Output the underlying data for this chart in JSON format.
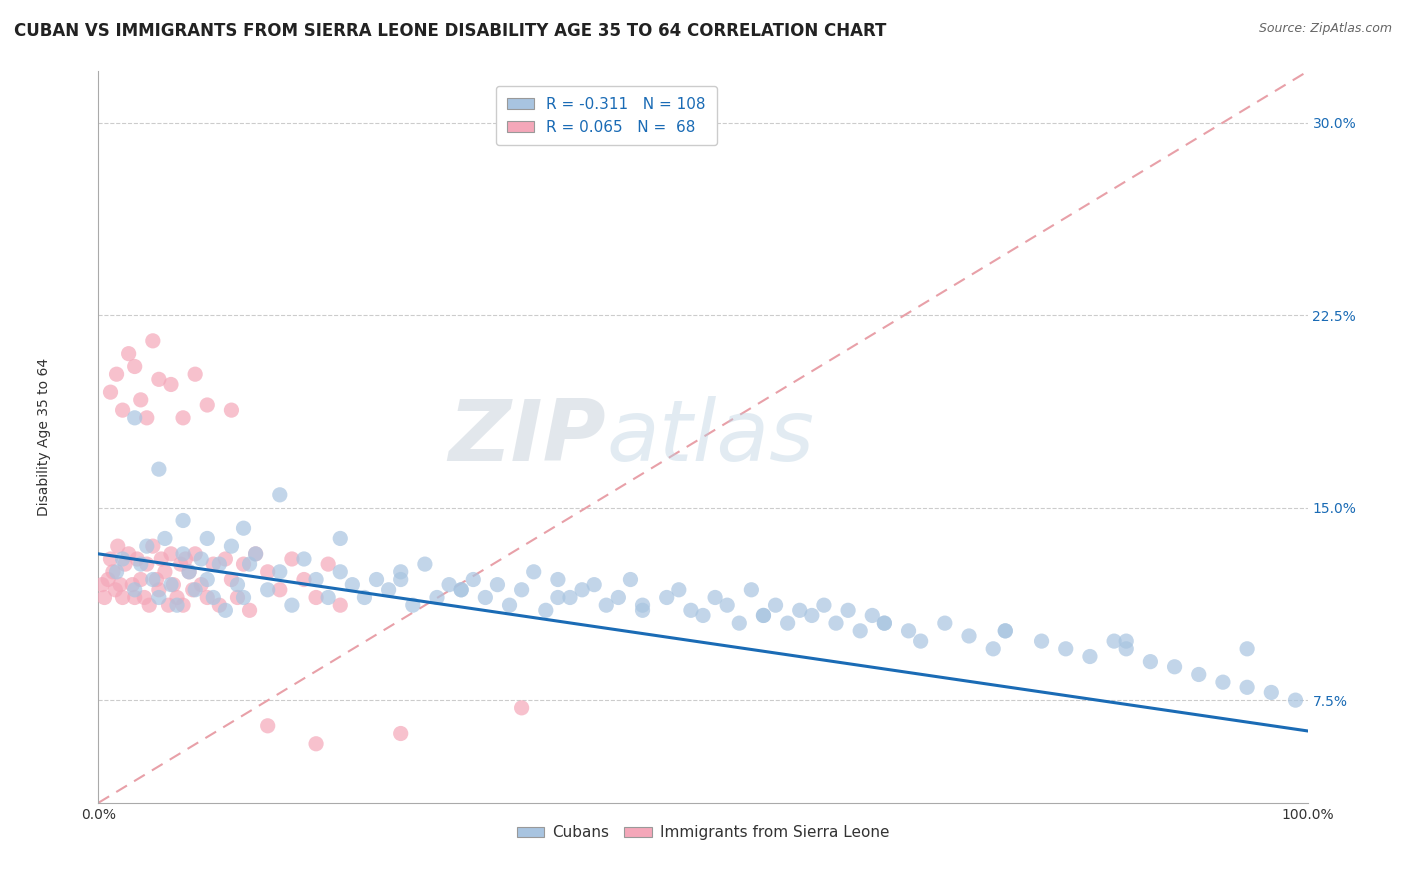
{
  "title": "CUBAN VS IMMIGRANTS FROM SIERRA LEONE DISABILITY AGE 35 TO 64 CORRELATION CHART",
  "source": "Source: ZipAtlas.com",
  "ylabel": "Disability Age 35 to 64",
  "x_min": 0.0,
  "x_max": 100.0,
  "y_min": 3.5,
  "y_max": 32.0,
  "x_tick_labels": [
    "0.0%",
    "100.0%"
  ],
  "y_ticks": [
    7.5,
    15.0,
    22.5,
    30.0
  ],
  "y_tick_labels": [
    "7.5%",
    "15.0%",
    "22.5%",
    "30.0%"
  ],
  "cubans_color": "#a8c4e0",
  "sierra_leone_color": "#f4a7b9",
  "trend_line_color": "#1a6bb5",
  "diagonal_line_color": "#e8a0a8",
  "background_color": "#ffffff",
  "legend_R1": "-0.311",
  "legend_N1": "108",
  "legend_R2": "0.065",
  "legend_N2": "68",
  "trend_blue_x0": 0,
  "trend_blue_y0": 13.2,
  "trend_blue_x1": 100,
  "trend_blue_y1": 6.3,
  "diag_x0": 0,
  "diag_y0": 3.5,
  "diag_x1": 100,
  "diag_y1": 32.0,
  "cubans_x": [
    1.5,
    2.0,
    3.0,
    3.5,
    4.0,
    4.5,
    5.0,
    5.5,
    6.0,
    6.5,
    7.0,
    7.5,
    8.0,
    8.5,
    9.0,
    9.5,
    10.0,
    10.5,
    11.0,
    11.5,
    12.0,
    12.5,
    13.0,
    14.0,
    15.0,
    16.0,
    17.0,
    18.0,
    19.0,
    20.0,
    21.0,
    22.0,
    23.0,
    24.0,
    25.0,
    26.0,
    27.0,
    28.0,
    29.0,
    30.0,
    31.0,
    32.0,
    33.0,
    34.0,
    35.0,
    36.0,
    37.0,
    38.0,
    39.0,
    40.0,
    41.0,
    42.0,
    43.0,
    44.0,
    45.0,
    47.0,
    48.0,
    49.0,
    50.0,
    51.0,
    52.0,
    53.0,
    54.0,
    55.0,
    56.0,
    57.0,
    58.0,
    59.0,
    60.0,
    61.0,
    62.0,
    63.0,
    64.0,
    65.0,
    67.0,
    68.0,
    70.0,
    72.0,
    74.0,
    75.0,
    78.0,
    80.0,
    82.0,
    84.0,
    85.0,
    87.0,
    89.0,
    91.0,
    93.0,
    95.0,
    97.0,
    99.0,
    3.0,
    5.0,
    7.0,
    9.0,
    12.0,
    15.0,
    20.0,
    25.0,
    30.0,
    38.0,
    45.0,
    55.0,
    65.0,
    75.0,
    85.0,
    95.0
  ],
  "cubans_y": [
    12.5,
    13.0,
    11.8,
    12.8,
    13.5,
    12.2,
    11.5,
    13.8,
    12.0,
    11.2,
    13.2,
    12.5,
    11.8,
    13.0,
    12.2,
    11.5,
    12.8,
    11.0,
    13.5,
    12.0,
    11.5,
    12.8,
    13.2,
    11.8,
    12.5,
    11.2,
    13.0,
    12.2,
    11.5,
    13.8,
    12.0,
    11.5,
    12.2,
    11.8,
    12.5,
    11.2,
    12.8,
    11.5,
    12.0,
    11.8,
    12.2,
    11.5,
    12.0,
    11.2,
    11.8,
    12.5,
    11.0,
    12.2,
    11.5,
    11.8,
    12.0,
    11.2,
    11.5,
    12.2,
    11.0,
    11.5,
    11.8,
    11.0,
    10.8,
    11.5,
    11.2,
    10.5,
    11.8,
    10.8,
    11.2,
    10.5,
    11.0,
    10.8,
    11.2,
    10.5,
    11.0,
    10.2,
    10.8,
    10.5,
    10.2,
    9.8,
    10.5,
    10.0,
    9.5,
    10.2,
    9.8,
    9.5,
    9.2,
    9.8,
    9.5,
    9.0,
    8.8,
    8.5,
    8.2,
    8.0,
    7.8,
    7.5,
    18.5,
    16.5,
    14.5,
    13.8,
    14.2,
    15.5,
    12.5,
    12.2,
    11.8,
    11.5,
    11.2,
    10.8,
    10.5,
    10.2,
    9.8,
    9.5
  ],
  "sierra_leone_x": [
    0.3,
    0.5,
    0.8,
    1.0,
    1.2,
    1.4,
    1.6,
    1.8,
    2.0,
    2.2,
    2.5,
    2.8,
    3.0,
    3.2,
    3.5,
    3.8,
    4.0,
    4.2,
    4.5,
    4.8,
    5.0,
    5.2,
    5.5,
    5.8,
    6.0,
    6.2,
    6.5,
    6.8,
    7.0,
    7.2,
    7.5,
    7.8,
    8.0,
    8.5,
    9.0,
    9.5,
    10.0,
    10.5,
    11.0,
    11.5,
    12.0,
    12.5,
    13.0,
    14.0,
    15.0,
    16.0,
    17.0,
    18.0,
    19.0,
    20.0,
    1.0,
    1.5,
    2.0,
    2.5,
    3.0,
    3.5,
    4.0,
    4.5,
    5.0,
    6.0,
    7.0,
    8.0,
    9.0,
    11.0,
    14.0,
    18.0,
    25.0,
    35.0
  ],
  "sierra_leone_y": [
    12.0,
    11.5,
    12.2,
    13.0,
    12.5,
    11.8,
    13.5,
    12.0,
    11.5,
    12.8,
    13.2,
    12.0,
    11.5,
    13.0,
    12.2,
    11.5,
    12.8,
    11.2,
    13.5,
    12.2,
    11.8,
    13.0,
    12.5,
    11.2,
    13.2,
    12.0,
    11.5,
    12.8,
    11.2,
    13.0,
    12.5,
    11.8,
    13.2,
    12.0,
    11.5,
    12.8,
    11.2,
    13.0,
    12.2,
    11.5,
    12.8,
    11.0,
    13.2,
    12.5,
    11.8,
    13.0,
    12.2,
    11.5,
    12.8,
    11.2,
    19.5,
    20.2,
    18.8,
    21.0,
    20.5,
    19.2,
    18.5,
    21.5,
    20.0,
    19.8,
    18.5,
    20.2,
    19.0,
    18.8,
    6.5,
    5.8,
    6.2,
    7.2
  ],
  "watermark_zip": "ZIP",
  "watermark_atlas": "atlas",
  "title_fontsize": 12,
  "axis_label_fontsize": 10,
  "tick_fontsize": 10,
  "legend_fontsize": 11
}
